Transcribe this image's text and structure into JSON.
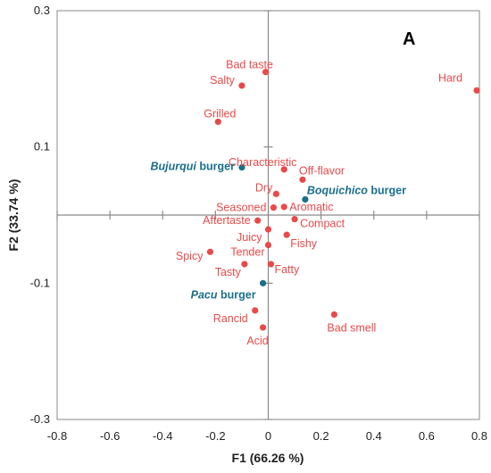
{
  "chart_data": {
    "type": "scatter",
    "panel_label": "A",
    "xlabel": "F1 (66.26 %)",
    "ylabel": "F2 (33.74 %)",
    "xlim": [
      -0.8,
      0.8
    ],
    "ylim": [
      -0.3,
      0.3
    ],
    "x_ticks": [
      "-0.8",
      "-0.6",
      "-0.4",
      "-0.2",
      "0",
      "0.2",
      "0.4",
      "0.6",
      "0.8"
    ],
    "x_tick_values": [
      -0.8,
      -0.6,
      -0.4,
      -0.2,
      0,
      0.2,
      0.4,
      0.6,
      0.8
    ],
    "y_ticks": [
      "0.3",
      "0.1",
      "-0.1",
      "-0.3"
    ],
    "y_tick_values": [
      0.3,
      0.1,
      -0.1,
      -0.3
    ],
    "attribute_color": "#e84a4a",
    "product_color": "#1a6f8a",
    "attributes": [
      {
        "name": "Bad taste",
        "x": -0.01,
        "y": 0.21
      },
      {
        "name": "Salty",
        "x": -0.1,
        "y": 0.19
      },
      {
        "name": "Grilled",
        "x": -0.19,
        "y": 0.137
      },
      {
        "name": "Hard",
        "x": 0.79,
        "y": 0.183
      },
      {
        "name": "Characteristic",
        "x": 0.06,
        "y": 0.067
      },
      {
        "name": "Off-flavor",
        "x": 0.13,
        "y": 0.052
      },
      {
        "name": "Dry",
        "x": 0.03,
        "y": 0.031
      },
      {
        "name": "Seasoned",
        "x": 0.02,
        "y": 0.011
      },
      {
        "name": "Aromatic",
        "x": 0.06,
        "y": 0.012
      },
      {
        "name": "Aftertaste",
        "x": -0.04,
        "y": -0.008
      },
      {
        "name": "Compact",
        "x": 0.1,
        "y": -0.006
      },
      {
        "name": "Juicy",
        "x": 0.0,
        "y": -0.021
      },
      {
        "name": "Fishy",
        "x": 0.07,
        "y": -0.029
      },
      {
        "name": "Tender",
        "x": 0.0,
        "y": -0.044
      },
      {
        "name": "Spicy",
        "x": -0.22,
        "y": -0.054
      },
      {
        "name": "Tasty",
        "x": -0.09,
        "y": -0.072
      },
      {
        "name": "Fatty",
        "x": 0.01,
        "y": -0.072
      },
      {
        "name": "Rancid",
        "x": -0.05,
        "y": -0.14
      },
      {
        "name": "Acid",
        "x": -0.02,
        "y": -0.165
      },
      {
        "name": "Bad smell",
        "x": 0.25,
        "y": -0.146
      }
    ],
    "products": [
      {
        "italic": "Bujurqui",
        "rest": " burger",
        "x": -0.1,
        "y": 0.07
      },
      {
        "italic": "Boquichico",
        "rest": " burger",
        "x": 0.14,
        "y": 0.023
      },
      {
        "italic": "Pacu",
        "rest": " burger",
        "x": -0.02,
        "y": -0.1
      }
    ]
  }
}
